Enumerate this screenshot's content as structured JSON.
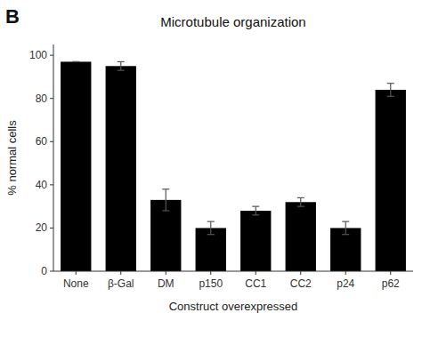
{
  "chart_data": {
    "type": "bar",
    "title": "Microtubule organization",
    "xlabel": "Construct overexpressed",
    "ylabel": "% normal cells",
    "annotations": [
      "B"
    ],
    "categories": [
      "None",
      "β-Gal",
      "DM",
      "p150",
      "CC1",
      "CC2",
      "p24",
      "p62"
    ],
    "values": [
      97,
      95,
      33,
      20,
      28,
      32,
      20,
      84
    ],
    "errors": [
      0,
      2,
      5,
      3,
      2,
      2,
      3,
      3
    ],
    "color": "#000000",
    "ylim": [
      0,
      105
    ],
    "yticks": [
      0,
      20,
      40,
      60,
      80,
      100
    ],
    "grid": false
  }
}
